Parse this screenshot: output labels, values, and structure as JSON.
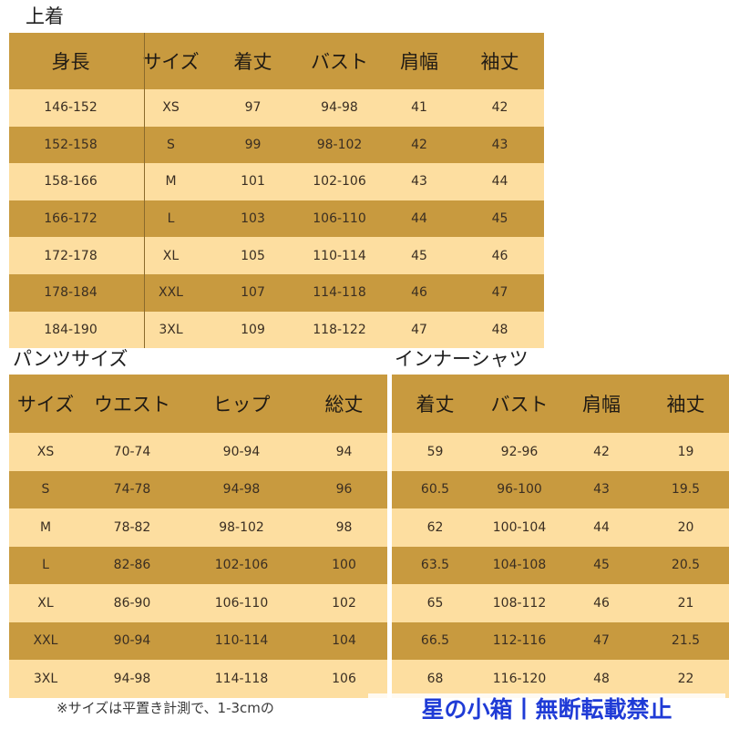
{
  "jacket": {
    "title": "上着",
    "headers": [
      "身長",
      "サイズ",
      "着丈",
      "バスト",
      "肩幅",
      "袖丈"
    ],
    "rows": [
      [
        "146-152",
        "XS",
        "97",
        "94-98",
        "41",
        "42"
      ],
      [
        "152-158",
        "S",
        "99",
        "98-102",
        "42",
        "43"
      ],
      [
        "158-166",
        "M",
        "101",
        "102-106",
        "43",
        "44"
      ],
      [
        "166-172",
        "L",
        "103",
        "106-110",
        "44",
        "45"
      ],
      [
        "172-178",
        "XL",
        "105",
        "110-114",
        "45",
        "46"
      ],
      [
        "178-184",
        "XXL",
        "107",
        "114-118",
        "46",
        "47"
      ],
      [
        "184-190",
        "3XL",
        "109",
        "118-122",
        "47",
        "48"
      ]
    ]
  },
  "pants": {
    "title": "パンツサイズ",
    "headers": [
      "サイズ",
      "ウエスト",
      "ヒップ",
      "総丈"
    ],
    "rows": [
      [
        "XS",
        "70-74",
        "90-94",
        "94"
      ],
      [
        "S",
        "74-78",
        "94-98",
        "96"
      ],
      [
        "M",
        "78-82",
        "98-102",
        "98"
      ],
      [
        "L",
        "82-86",
        "102-106",
        "100"
      ],
      [
        "XL",
        "86-90",
        "106-110",
        "102"
      ],
      [
        "XXL",
        "90-94",
        "110-114",
        "104"
      ],
      [
        "3XL",
        "94-98",
        "114-118",
        "106"
      ]
    ]
  },
  "inner": {
    "title": "インナーシャツ",
    "headers": [
      "着丈",
      "バスト",
      "肩幅",
      "袖丈"
    ],
    "rows": [
      [
        "59",
        "92-96",
        "42",
        "19"
      ],
      [
        "60.5",
        "96-100",
        "43",
        "19.5"
      ],
      [
        "62",
        "100-104",
        "44",
        "20"
      ],
      [
        "63.5",
        "104-108",
        "45",
        "20.5"
      ],
      [
        "65",
        "108-112",
        "46",
        "21"
      ],
      [
        "66.5",
        "112-116",
        "47",
        "21.5"
      ],
      [
        "68",
        "116-120",
        "48",
        "22"
      ]
    ]
  },
  "footer_note": "※サイズは平置き計測で、1-3cmの",
  "watermark": "星の小箱丨無断転載禁止",
  "colors": {
    "dark_row": "#c89a3f",
    "light_row": "#fddea0",
    "watermark": "#1f3bd6"
  }
}
